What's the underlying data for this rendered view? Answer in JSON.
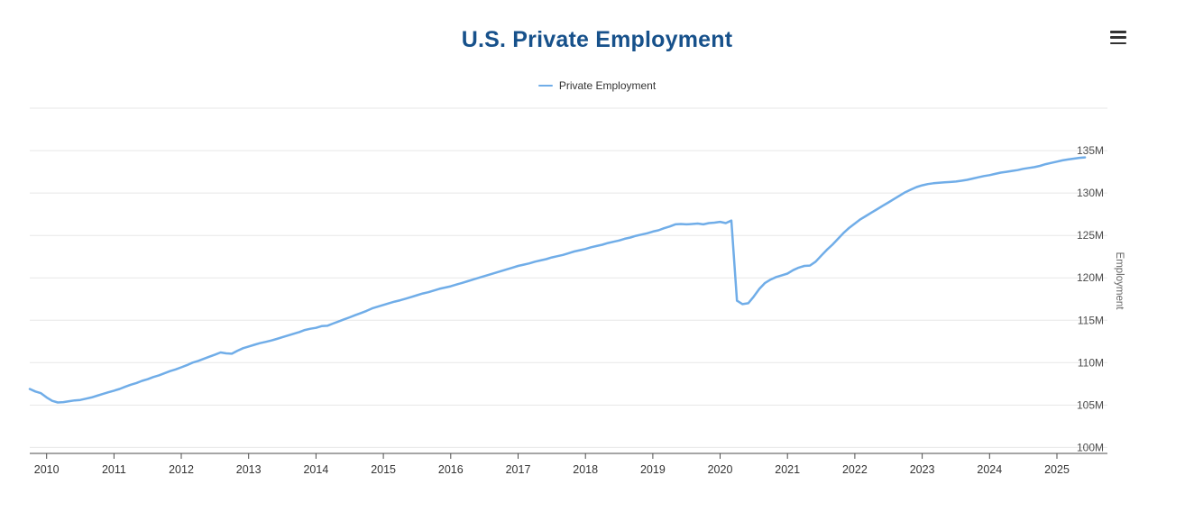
{
  "colors": {
    "title": "#17518b",
    "series": "#70ade8",
    "grid": "#e7e7e7",
    "axis_line": "#4d4d4d",
    "x_tick_label": "#333333",
    "y_tick_label": "#4d4d4d",
    "axis_title": "#666666",
    "legend_text": "#333333",
    "menu_icon": "#333333"
  },
  "context_menu": {
    "icon": "hamburger-menu-icon"
  },
  "chart_data": {
    "type": "line",
    "title": "U.S. Private Employment",
    "ylabel": "Employment",
    "xlabel": "",
    "grid": true,
    "legend_position": "top-center",
    "legend": [
      {
        "label": "Private Employment",
        "color": "#70ade8"
      }
    ],
    "x_ticks": [
      2010,
      2011,
      2012,
      2013,
      2014,
      2015,
      2016,
      2017,
      2018,
      2019,
      2020,
      2021,
      2022,
      2023,
      2024,
      2025
    ],
    "xlim": [
      2009.75,
      2025.75
    ],
    "y_ticks": [
      100,
      105,
      110,
      115,
      120,
      125,
      130,
      135,
      140
    ],
    "y_tick_labels": [
      "100M",
      "105M",
      "110M",
      "115M",
      "120M",
      "125M",
      "130M",
      "135M",
      ""
    ],
    "ylim": [
      99.3,
      140
    ],
    "series": [
      {
        "name": "Private Employment",
        "color": "#70ade8",
        "unit": "millions",
        "start_year": 2009,
        "start_month": 10,
        "interval_months": 1,
        "values": [
          106.9,
          106.6,
          106.4,
          105.9,
          105.5,
          105.3,
          105.35,
          105.45,
          105.55,
          105.6,
          105.75,
          105.9,
          106.1,
          106.3,
          106.5,
          106.7,
          106.9,
          107.15,
          107.4,
          107.6,
          107.85,
          108.05,
          108.3,
          108.5,
          108.75,
          109.0,
          109.2,
          109.45,
          109.7,
          110.0,
          110.2,
          110.45,
          110.7,
          110.95,
          111.2,
          111.1,
          111.05,
          111.4,
          111.7,
          111.9,
          112.1,
          112.3,
          112.45,
          112.6,
          112.8,
          113.0,
          113.2,
          113.4,
          113.6,
          113.85,
          114.0,
          114.1,
          114.3,
          114.35,
          114.6,
          114.85,
          115.1,
          115.35,
          115.6,
          115.85,
          116.1,
          116.4,
          116.6,
          116.8,
          117.0,
          117.2,
          117.35,
          117.55,
          117.75,
          117.95,
          118.15,
          118.3,
          118.5,
          118.7,
          118.85,
          119.0,
          119.2,
          119.4,
          119.6,
          119.8,
          120.0,
          120.2,
          120.4,
          120.6,
          120.8,
          121.0,
          121.2,
          121.4,
          121.55,
          121.7,
          121.9,
          122.05,
          122.2,
          122.4,
          122.55,
          122.7,
          122.9,
          123.1,
          123.25,
          123.4,
          123.6,
          123.75,
          123.9,
          124.1,
          124.25,
          124.4,
          124.6,
          124.75,
          124.95,
          125.1,
          125.25,
          125.45,
          125.6,
          125.85,
          126.05,
          126.3,
          126.35,
          126.3,
          126.35,
          126.4,
          126.3,
          126.45,
          126.5,
          126.6,
          126.45,
          126.75,
          117.3,
          116.9,
          117.0,
          117.8,
          118.7,
          119.4,
          119.8,
          120.1,
          120.3,
          120.5,
          120.9,
          121.2,
          121.4,
          121.45,
          121.9,
          122.6,
          123.3,
          123.9,
          124.6,
          125.3,
          125.9,
          126.4,
          126.9,
          127.3,
          127.7,
          128.1,
          128.5,
          128.9,
          129.3,
          129.7,
          130.1,
          130.4,
          130.7,
          130.9,
          131.05,
          131.15,
          131.2,
          131.25,
          131.3,
          131.35,
          131.45,
          131.55,
          131.7,
          131.85,
          132.0,
          132.1,
          132.25,
          132.4,
          132.5,
          132.6,
          132.7,
          132.85,
          132.95,
          133.05,
          133.2,
          133.4,
          133.55,
          133.7,
          133.85,
          133.95,
          134.05,
          134.15,
          134.2
        ]
      }
    ]
  }
}
